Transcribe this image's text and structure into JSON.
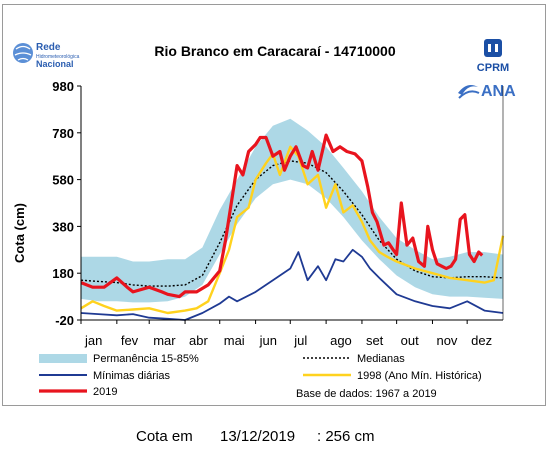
{
  "logos": {
    "rede": {
      "line1": "Rede",
      "line2": "Hidrometeorológica",
      "line3": "Nacional",
      "icon": "globe-icon"
    },
    "cprm": {
      "text": "CPRM",
      "icon": "cprm-emblem-icon"
    },
    "ana": {
      "text": "ANA",
      "icon": "ana-wave-icon"
    }
  },
  "colors": {
    "band": "#add8e6",
    "median": "#000000",
    "minimum": "#1f3a93",
    "y1998": "#ffd21e",
    "y2019": "#e8141e"
  },
  "footer": {
    "label": "Cota em",
    "date": "13/12/2019",
    "value": ": 256 cm"
  },
  "chart_data": {
    "type": "line",
    "title": "Rio Branco em Caracaraí - 14710000",
    "ylabel": "Cota (cm)",
    "xlabel": "",
    "ylim": [
      -20,
      980
    ],
    "yticks": [
      -20,
      180,
      380,
      580,
      780,
      980
    ],
    "xlim": [
      0,
      365
    ],
    "month_ticks": [
      {
        "label": "jan",
        "day": 0
      },
      {
        "label": "fev",
        "day": 31
      },
      {
        "label": "mar",
        "day": 59
      },
      {
        "label": "abr",
        "day": 90
      },
      {
        "label": "mai",
        "day": 120
      },
      {
        "label": "jun",
        "day": 151
      },
      {
        "label": "jul",
        "day": 181
      },
      {
        "label": "ago",
        "day": 212
      },
      {
        "label": "set",
        "day": 243
      },
      {
        "label": "out",
        "day": 273
      },
      {
        "label": "nov",
        "day": 304
      },
      {
        "label": "dez",
        "day": 334
      }
    ],
    "grid": false,
    "legend_position": "bottom",
    "note": "Base de dados: 1967 a 2019",
    "band": {
      "name": "Permanência 15-85%",
      "x": [
        0,
        15,
        31,
        45,
        59,
        75,
        90,
        105,
        120,
        135,
        151,
        166,
        181,
        196,
        212,
        227,
        243,
        258,
        273,
        289,
        304,
        319,
        334,
        349,
        365
      ],
      "lower": [
        70,
        60,
        60,
        55,
        55,
        60,
        80,
        130,
        260,
        390,
        500,
        560,
        580,
        560,
        500,
        420,
        320,
        240,
        170,
        120,
        90,
        80,
        80,
        75,
        70
      ],
      "upper": [
        250,
        250,
        250,
        230,
        230,
        240,
        240,
        290,
        450,
        580,
        720,
        810,
        840,
        790,
        720,
        630,
        530,
        420,
        330,
        280,
        240,
        250,
        270,
        270,
        260
      ]
    },
    "series": [
      {
        "name": "Medianas",
        "x": [
          0,
          15,
          31,
          45,
          59,
          75,
          90,
          105,
          120,
          135,
          151,
          166,
          181,
          196,
          212,
          227,
          243,
          258,
          273,
          289,
          304,
          319,
          334,
          349,
          365
        ],
        "values": [
          150,
          145,
          140,
          130,
          125,
          125,
          130,
          170,
          310,
          470,
          580,
          640,
          660,
          650,
          610,
          530,
          430,
          320,
          240,
          190,
          165,
          160,
          165,
          165,
          160
        ]
      },
      {
        "name": "Mínimas diárias",
        "x": [
          0,
          15,
          31,
          45,
          59,
          75,
          90,
          105,
          120,
          128,
          135,
          151,
          160,
          166,
          181,
          188,
          196,
          205,
          212,
          220,
          227,
          235,
          243,
          250,
          258,
          273,
          289,
          304,
          319,
          334,
          349,
          365
        ],
        "values": [
          10,
          5,
          0,
          5,
          -10,
          -15,
          -20,
          10,
          50,
          80,
          60,
          100,
          130,
          150,
          200,
          270,
          150,
          210,
          150,
          240,
          230,
          280,
          250,
          200,
          160,
          90,
          60,
          40,
          30,
          60,
          20,
          10
        ]
      },
      {
        "name": "1998 (Ano Mín. Histórica)",
        "x": [
          0,
          10,
          20,
          31,
          45,
          59,
          75,
          90,
          100,
          110,
          120,
          128,
          135,
          145,
          151,
          160,
          166,
          172,
          181,
          188,
          196,
          205,
          212,
          220,
          227,
          235,
          243,
          250,
          258,
          265,
          273,
          289,
          304,
          319,
          334,
          349,
          357,
          365
        ],
        "values": [
          30,
          60,
          40,
          20,
          25,
          30,
          10,
          20,
          30,
          60,
          180,
          280,
          420,
          460,
          580,
          650,
          690,
          600,
          720,
          680,
          560,
          600,
          460,
          560,
          440,
          470,
          400,
          320,
          270,
          250,
          230,
          200,
          180,
          160,
          150,
          140,
          150,
          340
        ]
      },
      {
        "name": "2019",
        "x": [
          0,
          10,
          20,
          31,
          40,
          45,
          59,
          70,
          75,
          85,
          90,
          100,
          110,
          120,
          125,
          130,
          135,
          140,
          145,
          151,
          155,
          160,
          166,
          172,
          176,
          181,
          186,
          192,
          196,
          200,
          205,
          212,
          218,
          224,
          230,
          237,
          243,
          248,
          252,
          256,
          262,
          266,
          270,
          273,
          277,
          282,
          287,
          292,
          297,
          300,
          304,
          308,
          312,
          316,
          320,
          324,
          328,
          332,
          336,
          340,
          344,
          347
        ],
        "values": [
          140,
          120,
          120,
          160,
          120,
          100,
          120,
          100,
          90,
          80,
          100,
          100,
          130,
          190,
          320,
          480,
          640,
          600,
          700,
          730,
          760,
          760,
          680,
          700,
          620,
          680,
          720,
          640,
          630,
          700,
          620,
          770,
          700,
          720,
          700,
          690,
          660,
          550,
          440,
          400,
          300,
          310,
          280,
          260,
          480,
          300,
          330,
          230,
          210,
          380,
          280,
          220,
          210,
          200,
          210,
          240,
          410,
          430,
          260,
          230,
          270,
          256
        ]
      }
    ],
    "legend": [
      {
        "label": "Permanência 15-85%",
        "kind": "band"
      },
      {
        "label": "Medianas",
        "kind": "median"
      },
      {
        "label": "Mínimas diárias",
        "kind": "minimum"
      },
      {
        "label": "1998 (Ano Mín. Histórica)",
        "kind": "y1998"
      },
      {
        "label": "2019",
        "kind": "y2019"
      }
    ]
  }
}
